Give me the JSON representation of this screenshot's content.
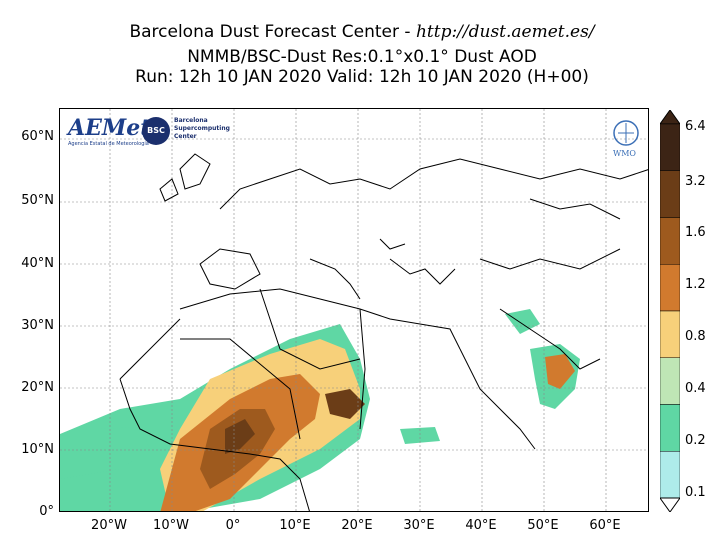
{
  "title": {
    "line1_prefix": "Barcelona Dust Forecast Center - ",
    "line1_url": "http://dust.aemet.es/",
    "line2": "NMMB/BSC-Dust   Res:0.1°x0.1°   Dust AOD",
    "line3": "Run: 12h 10 JAN 2020   Valid: 12h 10 JAN 2020 (H+00)"
  },
  "map": {
    "y_ticks": [
      "60°N",
      "50°N",
      "40°N",
      "30°N",
      "20°N",
      "10°N",
      "0°"
    ],
    "x_ticks": [
      "20°W",
      "10°W",
      "0°",
      "10°E",
      "20°E",
      "30°E",
      "40°E",
      "50°E",
      "60°E"
    ],
    "logos": {
      "aemet": "AEMet",
      "aemet_sub": "Agencia Estatal de Meteorología",
      "bsc": "BSC",
      "bsc_text": "Barcelona Supercomputing Center",
      "wmo": "WMO"
    }
  },
  "colorbar": {
    "labels": [
      "6.4",
      "3.2",
      "1.6",
      "1.2",
      "0.8",
      "0.4",
      "0.2",
      "0.1"
    ],
    "colors": [
      "#3c2415",
      "#6b3d17",
      "#9e5a1e",
      "#d17a2e",
      "#f7d07a",
      "#bfe6b5",
      "#5fd7a4",
      "#aeecea"
    ]
  }
}
